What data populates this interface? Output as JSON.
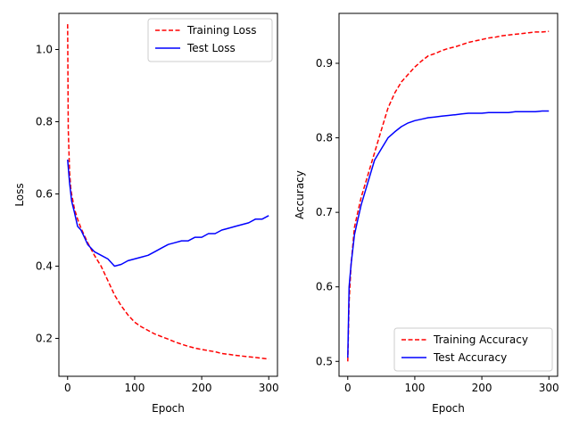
{
  "colors": {
    "training": "#ff0000",
    "test": "#0000ff",
    "axes": "#000000",
    "background": "#ffffff"
  },
  "chart_data": [
    {
      "type": "line",
      "xlabel": "Epoch",
      "ylabel": "Loss",
      "xlim": [
        -13,
        313
      ],
      "ylim": [
        0.095,
        1.1
      ],
      "xticks": [
        0,
        100,
        200,
        300
      ],
      "yticks": [
        0.2,
        0.4,
        0.6,
        0.8,
        1.0
      ],
      "ytick_labels": [
        "0.2",
        "0.4",
        "0.6",
        "0.8",
        "1.0"
      ],
      "grid": false,
      "legend": "upper right",
      "series": [
        {
          "name": "Training Loss",
          "style": "dashed",
          "color": "#ff0000",
          "x": [
            0,
            1,
            3,
            5,
            10,
            15,
            20,
            30,
            40,
            50,
            60,
            70,
            80,
            90,
            100,
            110,
            120,
            130,
            140,
            150,
            160,
            170,
            180,
            190,
            200,
            210,
            220,
            230,
            240,
            250,
            260,
            270,
            280,
            290,
            300
          ],
          "y": [
            1.07,
            0.78,
            0.66,
            0.61,
            0.56,
            0.53,
            0.505,
            0.465,
            0.43,
            0.4,
            0.36,
            0.32,
            0.29,
            0.265,
            0.245,
            0.232,
            0.222,
            0.212,
            0.205,
            0.198,
            0.19,
            0.184,
            0.178,
            0.173,
            0.169,
            0.166,
            0.163,
            0.158,
            0.156,
            0.153,
            0.151,
            0.149,
            0.147,
            0.145,
            0.143
          ]
        },
        {
          "name": "Test Loss",
          "style": "solid",
          "color": "#0000ff",
          "x": [
            0,
            3,
            6,
            10,
            15,
            20,
            25,
            30,
            40,
            50,
            60,
            70,
            80,
            90,
            100,
            110,
            120,
            130,
            140,
            150,
            160,
            170,
            180,
            190,
            200,
            210,
            220,
            230,
            240,
            250,
            260,
            270,
            280,
            290,
            300
          ],
          "y": [
            0.695,
            0.63,
            0.58,
            0.55,
            0.51,
            0.5,
            0.48,
            0.46,
            0.44,
            0.43,
            0.42,
            0.4,
            0.405,
            0.415,
            0.42,
            0.425,
            0.43,
            0.44,
            0.45,
            0.46,
            0.465,
            0.47,
            0.47,
            0.48,
            0.48,
            0.49,
            0.49,
            0.5,
            0.505,
            0.51,
            0.515,
            0.52,
            0.53,
            0.53,
            0.54
          ]
        }
      ]
    },
    {
      "type": "line",
      "xlabel": "Epoch",
      "ylabel": "Accuracy",
      "xlim": [
        -13,
        313
      ],
      "ylim": [
        0.48,
        0.967
      ],
      "xticks": [
        0,
        100,
        200,
        300
      ],
      "yticks": [
        0.5,
        0.6,
        0.7,
        0.8,
        0.9
      ],
      "ytick_labels": [
        "0.5",
        "0.6",
        "0.7",
        "0.8",
        "0.9"
      ],
      "grid": false,
      "legend": "lower right",
      "series": [
        {
          "name": "Training Accuracy",
          "style": "dashed",
          "color": "#ff0000",
          "x": [
            0,
            2,
            5,
            10,
            15,
            20,
            30,
            40,
            50,
            60,
            70,
            80,
            90,
            100,
            110,
            120,
            130,
            140,
            150,
            160,
            170,
            180,
            190,
            200,
            210,
            220,
            230,
            240,
            250,
            260,
            270,
            280,
            290,
            300
          ],
          "y": [
            0.5,
            0.58,
            0.63,
            0.68,
            0.7,
            0.72,
            0.75,
            0.78,
            0.81,
            0.84,
            0.86,
            0.875,
            0.885,
            0.895,
            0.903,
            0.91,
            0.913,
            0.917,
            0.92,
            0.922,
            0.925,
            0.928,
            0.93,
            0.932,
            0.934,
            0.935,
            0.937,
            0.938,
            0.939,
            0.94,
            0.941,
            0.942,
            0.942,
            0.943
          ]
        },
        {
          "name": "Test Accuracy",
          "style": "solid",
          "color": "#0000ff",
          "x": [
            0,
            2,
            5,
            10,
            15,
            20,
            30,
            40,
            50,
            60,
            70,
            80,
            90,
            100,
            110,
            120,
            130,
            140,
            150,
            160,
            170,
            180,
            190,
            200,
            210,
            220,
            230,
            240,
            250,
            260,
            270,
            280,
            290,
            300
          ],
          "y": [
            0.505,
            0.6,
            0.63,
            0.67,
            0.69,
            0.71,
            0.74,
            0.77,
            0.785,
            0.8,
            0.808,
            0.815,
            0.82,
            0.823,
            0.825,
            0.827,
            0.828,
            0.829,
            0.83,
            0.831,
            0.832,
            0.833,
            0.833,
            0.833,
            0.834,
            0.834,
            0.834,
            0.834,
            0.835,
            0.835,
            0.835,
            0.835,
            0.836,
            0.836
          ]
        }
      ]
    }
  ]
}
